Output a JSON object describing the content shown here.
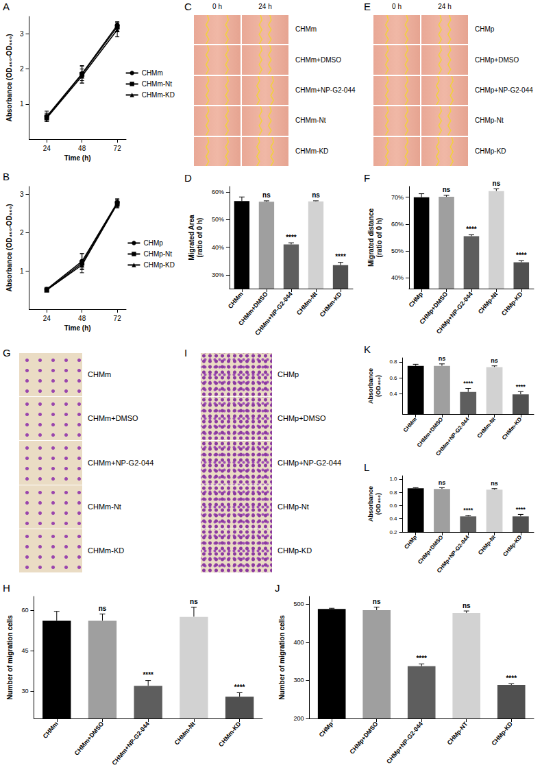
{
  "chart_data": [
    {
      "panel": "A",
      "type": "line",
      "x_label": "Time (h)",
      "y_label": "Absorbance (OD₄₅₀-OD₆₀₀)",
      "x": [
        24,
        48,
        72
      ],
      "xlim": [
        12,
        78
      ],
      "xticks": [
        24,
        48,
        72
      ],
      "ylim": [
        0,
        3.5
      ],
      "yticks": [
        1,
        2,
        3
      ],
      "legend": "right",
      "series": [
        {
          "name": "CHMm",
          "color": "#000000",
          "marker": "circle",
          "values": [
            0.65,
            1.87,
            3.25
          ],
          "errors": [
            0.15,
            0.2,
            0.1
          ]
        },
        {
          "name": "CHMm-Nt",
          "color": "#000000",
          "marker": "square",
          "values": [
            0.62,
            1.85,
            3.2
          ],
          "errors": [
            0.12,
            0.25,
            0.12
          ]
        },
        {
          "name": "CHMm-KD",
          "color": "#000000",
          "marker": "triangle",
          "values": [
            0.6,
            1.8,
            3.12
          ],
          "errors": [
            0.1,
            0.2,
            0.2
          ]
        }
      ]
    },
    {
      "panel": "B",
      "type": "line",
      "x_label": "Time (h)",
      "y_label": "Absorbance (OD₄₅₀-OD₆₀₀)",
      "x": [
        24,
        48,
        72
      ],
      "xlim": [
        12,
        78
      ],
      "xticks": [
        24,
        48,
        72
      ],
      "ylim": [
        0,
        3.2
      ],
      "yticks": [
        1,
        2,
        3
      ],
      "legend": "right",
      "series": [
        {
          "name": "CHMp",
          "color": "#000000",
          "marker": "circle",
          "values": [
            0.52,
            1.25,
            2.78
          ],
          "errors": [
            0.05,
            0.2,
            0.1
          ]
        },
        {
          "name": "CHMp-Nt",
          "color": "#000000",
          "marker": "square",
          "values": [
            0.5,
            1.2,
            2.76
          ],
          "errors": [
            0.04,
            0.25,
            0.1
          ]
        },
        {
          "name": "CHMp-KD",
          "color": "#000000",
          "marker": "triangle",
          "values": [
            0.5,
            1.15,
            2.74
          ],
          "errors": [
            0.03,
            0.12,
            0.1
          ]
        }
      ]
    },
    {
      "panel": "D",
      "type": "bar",
      "y_label": "Migrated Area (ratio of 0 h)",
      "categories": [
        "CHMm",
        "CHMm+DMSO",
        "CHMm+NP-G2-044",
        "CHMm-Nt",
        "CHMm-KD"
      ],
      "values": [
        56.7,
        56.5,
        41,
        56.6,
        33.5
      ],
      "errors": [
        1.5,
        0.3,
        0.6,
        0.2,
        1.0
      ],
      "colors": [
        "#000000",
        "#9f9f9f",
        "#5e5e5e",
        "#d2d2d2",
        "#505050"
      ],
      "annotations": [
        null,
        "ns",
        "****",
        "ns",
        "****"
      ],
      "ylim": [
        25,
        62
      ],
      "yticks": [
        {
          "value": 30,
          "label": "30%"
        },
        {
          "value": 40,
          "label": "40%"
        },
        {
          "value": 50,
          "label": "50%"
        },
        {
          "value": 60,
          "label": "60%"
        }
      ]
    },
    {
      "panel": "F",
      "type": "bar",
      "y_label": "Migrated distance (ratio of 0 h)",
      "categories": [
        "CHMp",
        "CHMp+DMSO",
        "CHMp+NP-G2-044",
        "CHMp-Nt",
        "CHMp-KD"
      ],
      "values": [
        70,
        70.2,
        55.5,
        72.3,
        45.8
      ],
      "errors": [
        1.3,
        0.5,
        0.5,
        0.8,
        0.6
      ],
      "colors": [
        "#000000",
        "#9f9f9f",
        "#5e5e5e",
        "#d2d2d2",
        "#505050"
      ],
      "annotations": [
        null,
        "ns",
        "****",
        "ns",
        "****"
      ],
      "ylim": [
        36,
        74
      ],
      "yticks": [
        {
          "value": 40,
          "label": "40%"
        },
        {
          "value": 50,
          "label": "50%"
        },
        {
          "value": 60,
          "label": "60%"
        },
        {
          "value": 70,
          "label": "70%"
        }
      ]
    },
    {
      "panel": "K",
      "type": "bar",
      "y_label": "Absorbance (OD₄₅₀)",
      "categories": [
        "CHMm",
        "CHMm+DMSO",
        "CHMm+NP-G2-044",
        "CHMm-Nt",
        "CHMm-KD"
      ],
      "values": [
        0.75,
        0.75,
        0.425,
        0.735,
        0.395
      ],
      "errors": [
        0.02,
        0.025,
        0.045,
        0.015,
        0.035
      ],
      "colors": [
        "#000000",
        "#9f9f9f",
        "#5e5e5e",
        "#d2d2d2",
        "#505050"
      ],
      "annotations": [
        null,
        "ns",
        "****",
        "ns",
        "****"
      ],
      "ylim": [
        0.15,
        0.85
      ],
      "yticks": [
        0.4,
        0.6,
        0.8
      ]
    },
    {
      "panel": "L",
      "type": "bar",
      "y_label": "Absorbance (OD₄₅₀)",
      "categories": [
        "CHMp",
        "CHMp+DMSO",
        "CHMp+NP-G2-044",
        "CHMp-Nt",
        "CHMp-KD"
      ],
      "values": [
        0.86,
        0.85,
        0.435,
        0.84,
        0.435
      ],
      "errors": [
        0.01,
        0.02,
        0.015,
        0.015,
        0.03
      ],
      "colors": [
        "#000000",
        "#9f9f9f",
        "#5e5e5e",
        "#d2d2d2",
        "#505050"
      ],
      "annotations": [
        null,
        "ns",
        "****",
        "ns",
        "****"
      ],
      "ylim": [
        0.2,
        1.05
      ],
      "yticks": [
        0.2,
        0.4,
        0.6,
        0.8,
        {
          "value": 1,
          "label": "1.0"
        }
      ]
    },
    {
      "panel": "H",
      "type": "bar",
      "y_label": "Number of migration cells",
      "categories": [
        "CHMm",
        "CHMm+DMSO",
        "CHMm+NP-G2-044",
        "CHMm-Nt",
        "CHMm-KD"
      ],
      "values": [
        56,
        56,
        32,
        57.5,
        28
      ],
      "errors": [
        3.5,
        2.5,
        2,
        3.5,
        1.5
      ],
      "colors": [
        "#000000",
        "#9f9f9f",
        "#5e5e5e",
        "#d2d2d2",
        "#505050"
      ],
      "annotations": [
        null,
        "ns",
        "****",
        "ns",
        "****"
      ],
      "ylim": [
        20,
        65
      ],
      "yticks": [
        30,
        45,
        60
      ]
    },
    {
      "panel": "J",
      "type": "bar",
      "y_label": "Number of migration cells",
      "categories": [
        "CHMp",
        "CHMp+DMSO",
        "CHMp+NP-G2-044",
        "CHMp-NT",
        "CHMp-KD"
      ],
      "values": [
        487,
        484,
        337,
        477,
        288
      ],
      "errors": [
        2,
        8,
        6,
        5,
        3
      ],
      "colors": [
        "#000000",
        "#9f9f9f",
        "#5e5e5e",
        "#d2d2d2",
        "#505050"
      ],
      "annotations": [
        null,
        "ns",
        "****",
        "ns",
        "****"
      ],
      "ylim": [
        200,
        520
      ],
      "yticks": [
        200,
        300,
        400,
        500
      ]
    }
  ],
  "image_panels": [
    {
      "panel": "C",
      "type": "scratch",
      "columns": [
        "0 h",
        "24 h"
      ],
      "rows": [
        "CHMm",
        "CHMm+DMSO",
        "CHMm+NP-G2-044",
        "CHMm-Nt",
        "CHMm-KD"
      ]
    },
    {
      "panel": "E",
      "type": "scratch",
      "columns": [
        "0 h",
        "24 h"
      ],
      "rows": [
        "CHMp",
        "CHMp+DMSO",
        "CHMp+NP-G2-044",
        "CHMp-Nt",
        "CHMp-KD"
      ]
    },
    {
      "panel": "G",
      "type": "transwell",
      "rows": [
        "CHMm",
        "CHMm+DMSO",
        "CHMm+NP-G2-044",
        "CHMm-Nt",
        "CHMm-KD"
      ]
    },
    {
      "panel": "I",
      "type": "transwell",
      "rows": [
        "CHMp",
        "CHMp+DMSO",
        "CHMp+NP-G2-044",
        "CHMp-Nt",
        "CHMp-KD"
      ]
    }
  ]
}
